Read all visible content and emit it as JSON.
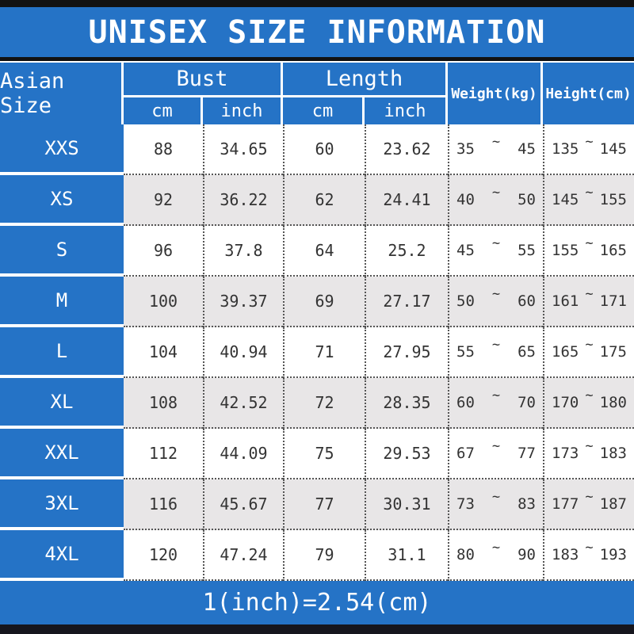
{
  "title": "UNISEX SIZE INFORMATION",
  "footer_note": "1(inch)=2.54(cm)",
  "tilde": "~",
  "colors": {
    "blue": "#2573c6",
    "gray_row": "#e8e6e7",
    "top_bar": "#121212",
    "bottom_bar": "#16161e",
    "text_dark": "#333333"
  },
  "header": {
    "asian_size": "Asian Size",
    "bust": "Bust",
    "length": "Length",
    "weight": "Weight(kg)",
    "height": "Height(cm)",
    "bust_cm": "cm",
    "bust_inch": "inch",
    "length_cm": "cm",
    "length_inch": "inch"
  },
  "rows": [
    {
      "size": "XXS",
      "bust_cm": "88",
      "bust_inch": "34.65",
      "length_cm": "60",
      "length_inch": "23.62",
      "weight": [
        "35",
        "45"
      ],
      "height": [
        "135",
        "145"
      ]
    },
    {
      "size": "XS",
      "bust_cm": "92",
      "bust_inch": "36.22",
      "length_cm": "62",
      "length_inch": "24.41",
      "weight": [
        "40",
        "50"
      ],
      "height": [
        "145",
        "155"
      ]
    },
    {
      "size": "S",
      "bust_cm": "96",
      "bust_inch": "37.8",
      "length_cm": "64",
      "length_inch": "25.2",
      "weight": [
        "45",
        "55"
      ],
      "height": [
        "155",
        "165"
      ]
    },
    {
      "size": "M",
      "bust_cm": "100",
      "bust_inch": "39.37",
      "length_cm": "69",
      "length_inch": "27.17",
      "weight": [
        "50",
        "60"
      ],
      "height": [
        "161",
        "171"
      ]
    },
    {
      "size": "L",
      "bust_cm": "104",
      "bust_inch": "40.94",
      "length_cm": "71",
      "length_inch": "27.95",
      "weight": [
        "55",
        "65"
      ],
      "height": [
        "165",
        "175"
      ]
    },
    {
      "size": "XL",
      "bust_cm": "108",
      "bust_inch": "42.52",
      "length_cm": "72",
      "length_inch": "28.35",
      "weight": [
        "60",
        "70"
      ],
      "height": [
        "170",
        "180"
      ]
    },
    {
      "size": "XXL",
      "bust_cm": "112",
      "bust_inch": "44.09",
      "length_cm": "75",
      "length_inch": "29.53",
      "weight": [
        "67",
        "77"
      ],
      "height": [
        "173",
        "183"
      ]
    },
    {
      "size": "3XL",
      "bust_cm": "116",
      "bust_inch": "45.67",
      "length_cm": "77",
      "length_inch": "30.31",
      "weight": [
        "73",
        "83"
      ],
      "height": [
        "177",
        "187"
      ]
    },
    {
      "size": "4XL",
      "bust_cm": "120",
      "bust_inch": "47.24",
      "length_cm": "79",
      "length_inch": "31.1",
      "weight": [
        "80",
        "90"
      ],
      "height": [
        "183",
        "193"
      ]
    }
  ]
}
